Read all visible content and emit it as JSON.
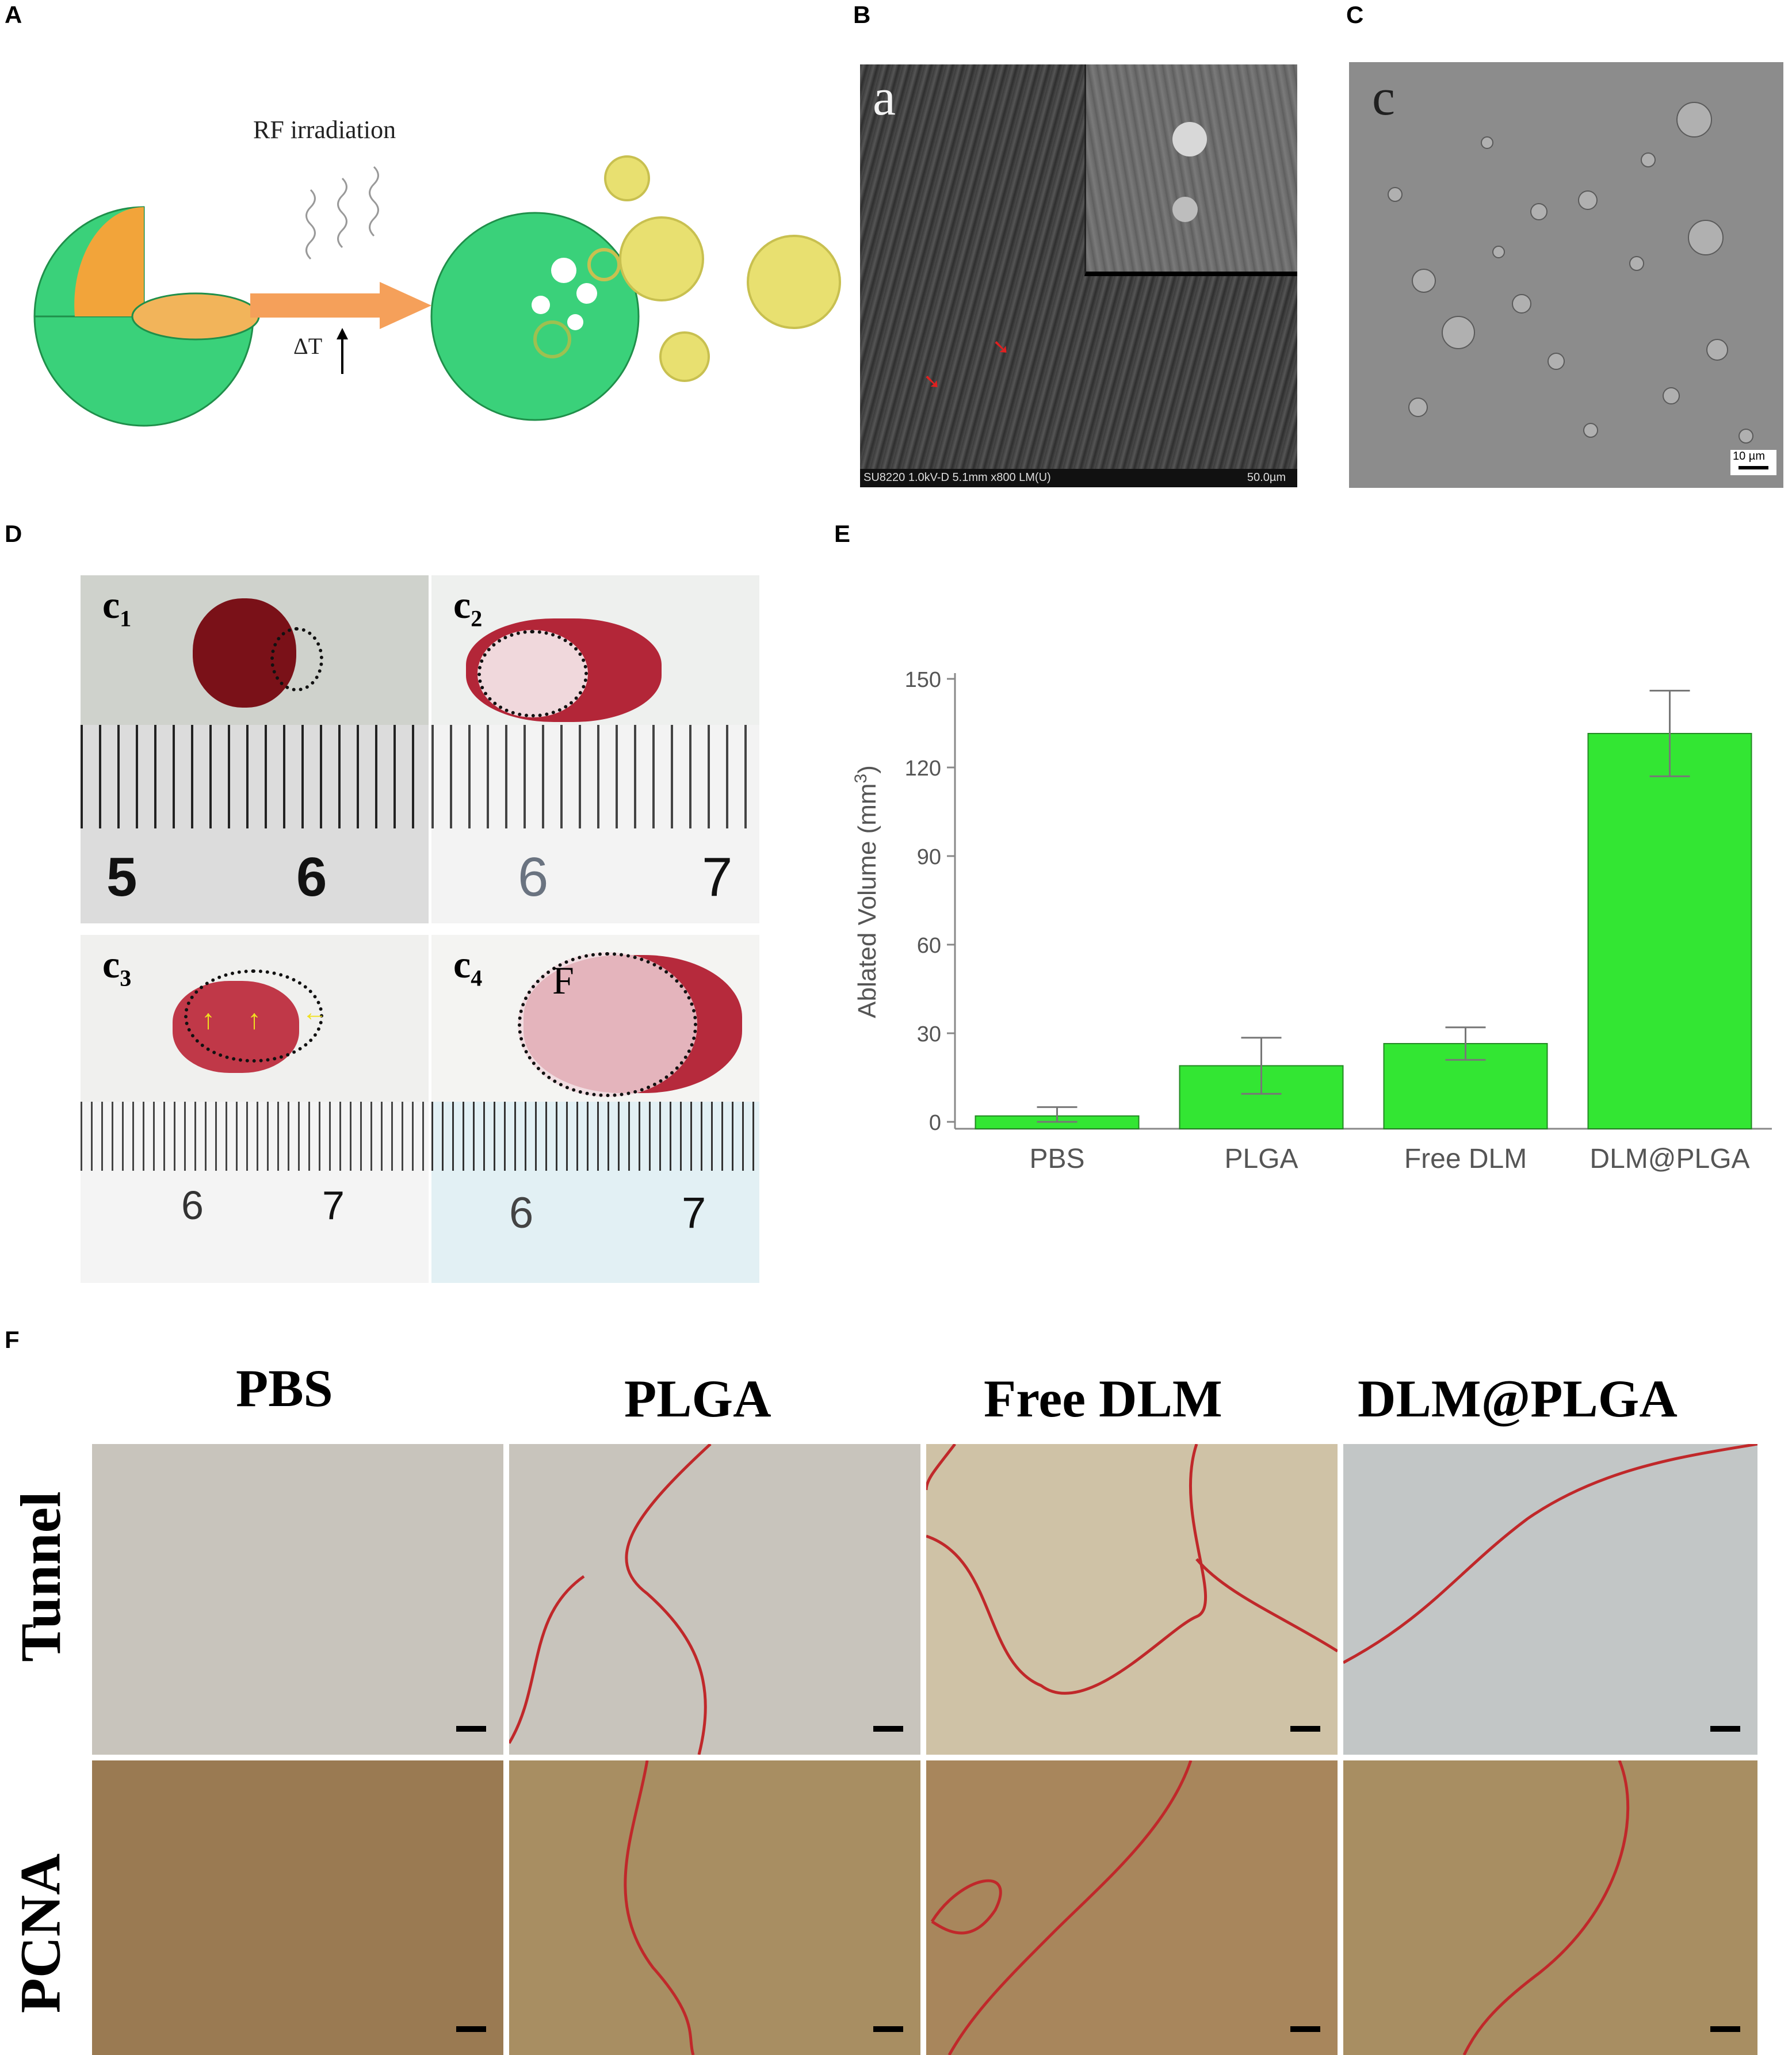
{
  "panels": {
    "A": {
      "letter": "A",
      "irradiation_label": "RF irradiation",
      "delta_t_label": "ΔT",
      "colors": {
        "shell": "#3ad17a",
        "core": "#f2a43a",
        "arrow": "#f5a05a",
        "bubble": "#d8d050"
      }
    },
    "B": {
      "letter": "B",
      "sublabel": "a",
      "footer_text": "SU8220 1.0kV-D 5.1mm x800 LM(U)",
      "scale_text": "50.0µm"
    },
    "C": {
      "letter": "C",
      "sublabel": "c",
      "scale_text": "10 µm"
    },
    "D": {
      "letter": "D",
      "subpanels": [
        {
          "label": "c",
          "sub": "1",
          "ruler_numbers": [
            "5",
            "6"
          ]
        },
        {
          "label": "c",
          "sub": "2",
          "ruler_numbers": [
            "6",
            "7"
          ]
        },
        {
          "label": "c",
          "sub": "3",
          "ruler_numbers": [
            "6",
            "7"
          ]
        },
        {
          "label": "c",
          "sub": "4",
          "ruler_numbers": [
            "6",
            "7"
          ],
          "extra_label": "F"
        }
      ]
    },
    "E": {
      "letter": "E"
    },
    "F": {
      "letter": "F",
      "columns": [
        "PBS",
        "PLGA",
        "Free DLM",
        "DLM@PLGA"
      ],
      "rows": [
        "Tunnel",
        "PCNA"
      ],
      "colors": {
        "outline": "#c0282a"
      }
    }
  },
  "chart_data": {
    "type": "bar",
    "categories": [
      "PBS",
      "PLGA",
      "Free DLM",
      "DLM@PLGA"
    ],
    "values": [
      2,
      19,
      26.5,
      131.5
    ],
    "errors": [
      3,
      9.5,
      5.5,
      14.5
    ],
    "ylabel": "Ablated Volume (mm",
    "ylabel_sup": "3",
    "ylabel_end": ")",
    "ylim": [
      0,
      150
    ],
    "yticks": [
      "0",
      "30",
      "60",
      "90",
      "120",
      "150"
    ],
    "bar_color": "#33e633"
  }
}
